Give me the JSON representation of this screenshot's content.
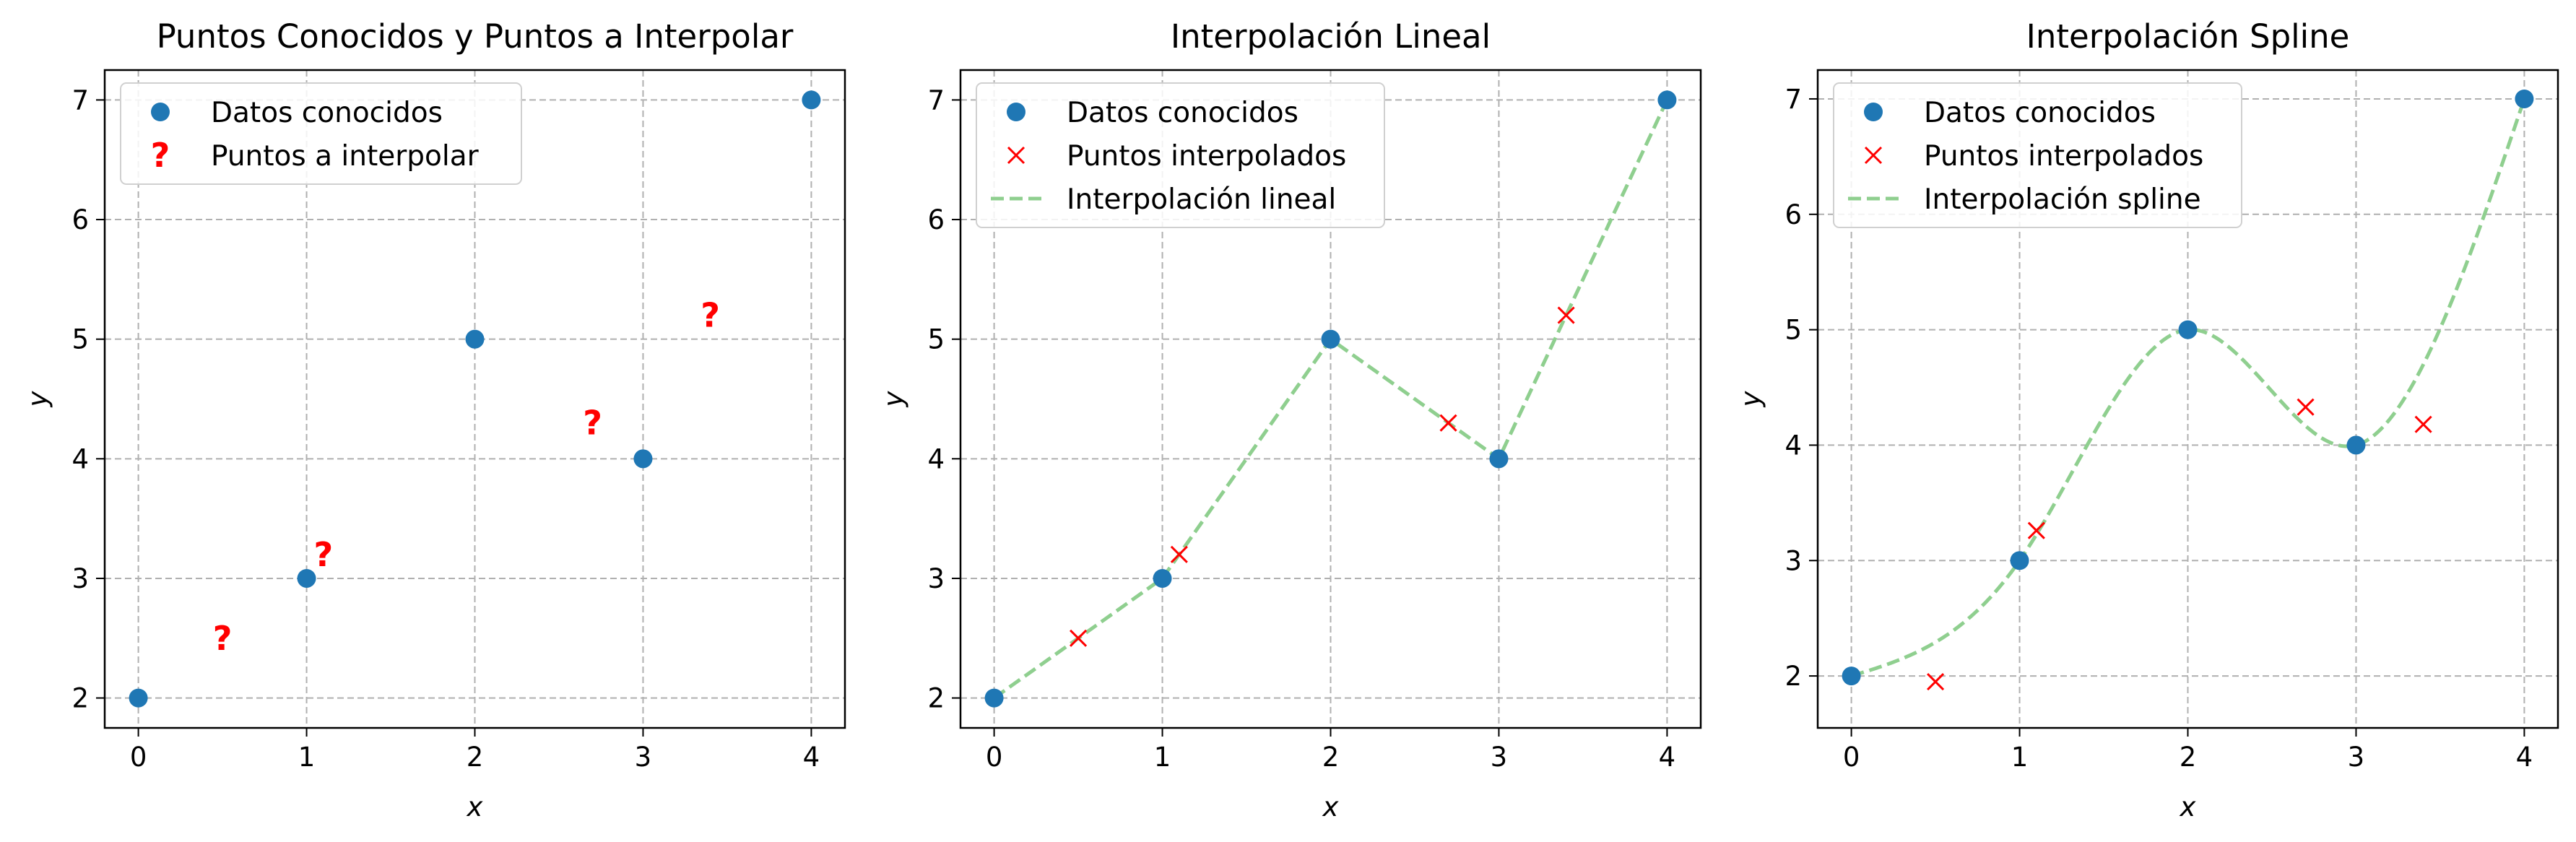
{
  "colors": {
    "known": "#1f77b4",
    "interp_marker": "#ff0000",
    "question_mark": "#ff0000",
    "line": "#8fcf8f",
    "grid": "#b0b0b0",
    "axes": "#000000"
  },
  "chart_data": [
    {
      "type": "scatter",
      "title": "Puntos Conocidos y Puntos a Interpolar",
      "xlabel": "x",
      "ylabel": "y",
      "xlim": [
        -0.2,
        4.2
      ],
      "ylim": [
        1.75,
        7.25
      ],
      "xticks": [
        "0",
        "1",
        "2",
        "3",
        "4"
      ],
      "yticks": [
        "2",
        "3",
        "4",
        "5",
        "6",
        "7"
      ],
      "grid": true,
      "legend_position": "upper-left",
      "series": [
        {
          "name": "Datos conocidos",
          "marker": "circle",
          "x": [
            0,
            1,
            2,
            3,
            4
          ],
          "y": [
            2,
            3,
            5,
            4,
            7
          ]
        },
        {
          "name": "Puntos a interpolar",
          "marker": "?",
          "x": [
            0.5,
            1.1,
            2.7,
            3.4
          ],
          "y": [
            2.5,
            3.2,
            4.3,
            5.2
          ]
        }
      ]
    },
    {
      "type": "line",
      "title": "Interpolación Lineal",
      "xlabel": "x",
      "ylabel": "y",
      "xlim": [
        -0.2,
        4.2
      ],
      "ylim": [
        1.75,
        7.25
      ],
      "xticks": [
        "0",
        "1",
        "2",
        "3",
        "4"
      ],
      "yticks": [
        "2",
        "3",
        "4",
        "5",
        "6",
        "7"
      ],
      "grid": true,
      "legend_position": "upper-left",
      "series": [
        {
          "name": "Datos conocidos",
          "marker": "circle",
          "x": [
            0,
            1,
            2,
            3,
            4
          ],
          "y": [
            2,
            3,
            5,
            4,
            7
          ]
        },
        {
          "name": "Puntos interpolados",
          "marker": "x",
          "x": [
            0.5,
            1.1,
            2.7,
            3.4
          ],
          "y": [
            2.5,
            3.2,
            4.3,
            5.2
          ]
        },
        {
          "name": "Interpolación lineal",
          "marker": "dashed-line",
          "x": [
            0,
            1,
            2,
            3,
            4
          ],
          "y": [
            2,
            3,
            5,
            4,
            7
          ]
        }
      ]
    },
    {
      "type": "line",
      "title": "Interpolación Spline",
      "xlabel": "x",
      "ylabel": "y",
      "xlim": [
        -0.2,
        4.2
      ],
      "ylim": [
        1.55,
        7.25
      ],
      "xticks": [
        "0",
        "1",
        "2",
        "3",
        "4"
      ],
      "yticks": [
        "2",
        "3",
        "4",
        "5",
        "6",
        "7"
      ],
      "grid": true,
      "legend_position": "upper-left",
      "series": [
        {
          "name": "Datos conocidos",
          "marker": "circle",
          "x": [
            0,
            1,
            2,
            3,
            4
          ],
          "y": [
            2,
            3,
            5,
            4,
            7
          ]
        },
        {
          "name": "Puntos interpolados",
          "marker": "x",
          "x": [
            0.5,
            1.1,
            2.7,
            3.4
          ],
          "y": [
            1.95,
            3.26,
            4.33,
            4.18
          ]
        },
        {
          "name": "Interpolación spline",
          "marker": "dashed-line",
          "curve": "cubic-spline",
          "x": [
            0,
            1,
            2,
            3,
            4
          ],
          "y": [
            2,
            3,
            5,
            4,
            7
          ]
        }
      ]
    }
  ]
}
